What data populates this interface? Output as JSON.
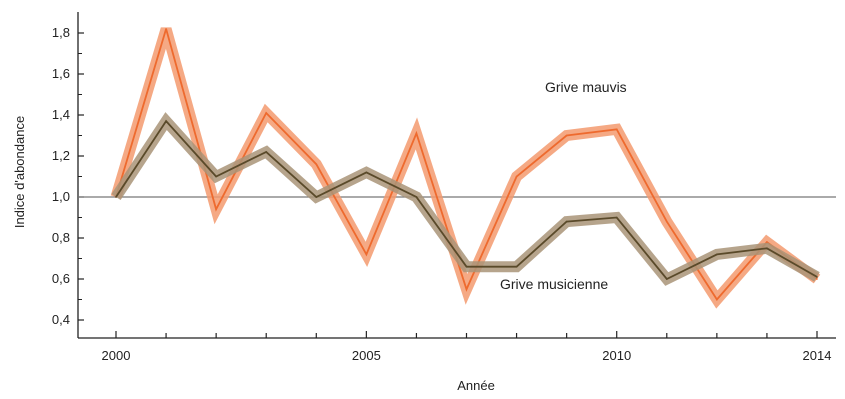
{
  "chart_data": {
    "type": "line",
    "x": [
      2000,
      2001,
      2002,
      2003,
      2004,
      2005,
      2006,
      2007,
      2008,
      2009,
      2010,
      2011,
      2012,
      2013,
      2014
    ],
    "series": [
      {
        "name": "Grive mauvis",
        "values": [
          1.0,
          1.82,
          0.94,
          1.41,
          1.16,
          0.72,
          1.31,
          0.55,
          1.1,
          1.3,
          1.33,
          0.88,
          0.5,
          0.78,
          0.6
        ],
        "color": "#ee6a2e",
        "band_color": "#f39a6f"
      },
      {
        "name": "Grive musicienne",
        "values": [
          1.0,
          1.37,
          1.1,
          1.22,
          1.0,
          1.12,
          1.0,
          0.66,
          0.66,
          0.88,
          0.9,
          0.6,
          0.72,
          0.75,
          0.61
        ],
        "color": "#5a4a2a",
        "band_color": "#a99478"
      }
    ],
    "reference_line": 1.0,
    "ylabel": "Indice d'abondance",
    "xlabel": "Année",
    "ylim": [
      0.35,
      1.9
    ],
    "xlim": [
      2000,
      2014
    ],
    "y_ticks": [
      0.4,
      0.6,
      0.8,
      1.0,
      1.2,
      1.4,
      1.6,
      1.8
    ],
    "y_tick_labels": [
      "0,4",
      "0,6",
      "0,8",
      "1,0",
      "1,2",
      "1,4",
      "1,6",
      "1,8"
    ],
    "x_tick_labels": [
      {
        "year": 2000,
        "label": "2000"
      },
      {
        "year": 2005,
        "label": "2005"
      },
      {
        "year": 2010,
        "label": "2010"
      },
      {
        "year": 2014,
        "label": "2014"
      }
    ],
    "labels": {
      "mauvis": "Grive mauvis",
      "musicienne": "Grive musicienne"
    },
    "grid": false
  }
}
